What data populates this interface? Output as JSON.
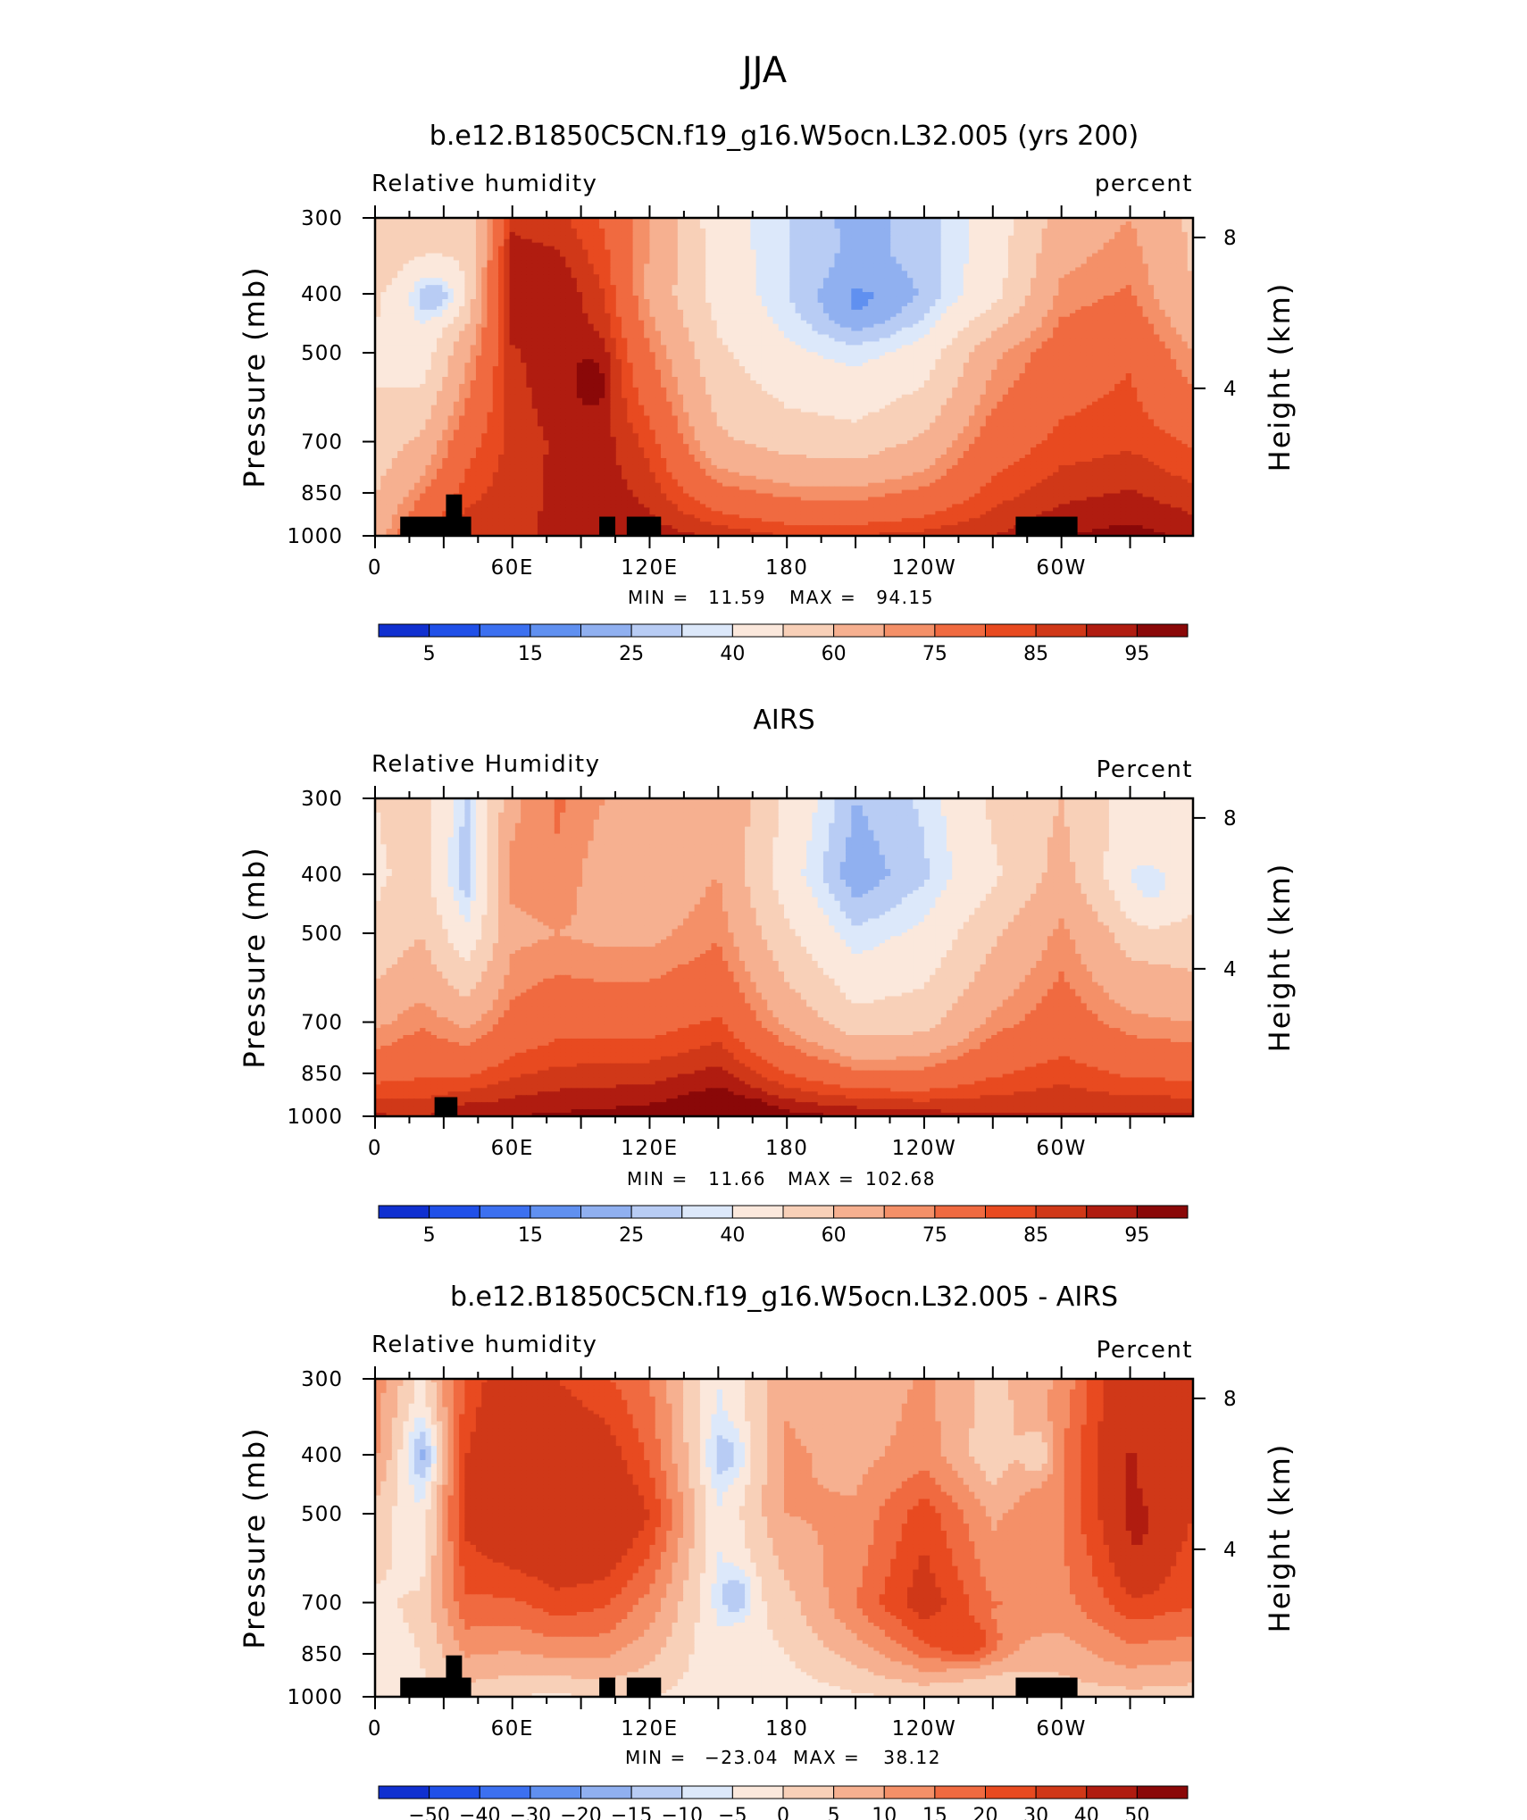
{
  "figure_title": "JJA",
  "colors": {
    "rh_fill_scale": [
      "#ffffff",
      "#0a0a78",
      "#0818a8",
      "#1030d0",
      "#2050e8",
      "#3c70f0",
      "#6090f0",
      "#90b0f0",
      "#b8ccf4",
      "#dce8fa",
      "#fbe8dc",
      "#f8d0b8",
      "#f6b090",
      "#f49068",
      "#f06a40",
      "#e84a20",
      "#d03818",
      "#b01c10",
      "#8a0808"
    ],
    "diff_fill_scale": [
      "#ffffff",
      "#0a0a78",
      "#0818a8",
      "#1030d0",
      "#2050e8",
      "#3c70f0",
      "#6090f0",
      "#90b0f0",
      "#b8ccf4",
      "#dce8fa",
      "#fbe8dc",
      "#f8d0b8",
      "#f6b090",
      "#f49068",
      "#f06a40",
      "#e84a20",
      "#d03818",
      "#b01c10",
      "#8a0808"
    ],
    "land_mask": "#000000"
  },
  "chart_data": [
    {
      "type": "heatmap",
      "title": "b.e12.B1850C5CN.f19_g16.W5ocn.L32.005 (yrs 200)",
      "left_label": "Relative humidity",
      "right_label": "percent",
      "ylabel": "Pressure (mb)",
      "ylabel_right": "Height (km)",
      "x_ticks": [
        {
          "lon": 0,
          "label": "0"
        },
        {
          "lon": 60,
          "label": "60E"
        },
        {
          "lon": 120,
          "label": "120E"
        },
        {
          "lon": 180,
          "label": "180"
        },
        {
          "lon": 240,
          "label": "120W"
        },
        {
          "lon": 300,
          "label": "60W"
        }
      ],
      "y_ticks": [
        300,
        400,
        500,
        700,
        850,
        1000
      ],
      "y_right_ticks": [
        {
          "km": 4,
          "label": "4"
        },
        {
          "km": 8,
          "label": "8"
        }
      ],
      "xlim": [
        0,
        357.5
      ],
      "ylim": [
        1000,
        300
      ],
      "stats": {
        "min_label": "MIN =",
        "min": "11.59",
        "max_label": "MAX =",
        "max": "94.15"
      },
      "colorbar": {
        "levels": [
          5,
          10,
          15,
          20,
          25,
          30,
          40,
          50,
          60,
          65,
          75,
          80,
          85,
          90,
          95
        ],
        "labels": [
          "5",
          "15",
          "25",
          "40",
          "60",
          "75",
          "85",
          "95"
        ]
      },
      "field": {
        "kind": "rh",
        "base": [
          [
            0,
            [
              50,
              42,
              38,
              44,
              55
            ]
          ],
          [
            20,
            [
              50,
              30,
              33,
              52,
              76
            ]
          ],
          [
            40,
            [
              40,
              44,
              58,
              72,
              84
            ]
          ],
          [
            60,
            [
              84,
              90,
              84,
              82,
              84
            ]
          ],
          [
            80,
            [
              82,
              90,
              89,
              86,
              86
            ]
          ],
          [
            100,
            [
              74,
              80,
              85,
              87,
              89
            ]
          ],
          [
            120,
            [
              60,
              58,
              66,
              78,
              88
            ]
          ],
          [
            150,
            [
              34,
              36,
              42,
              52,
              84
            ]
          ],
          [
            180,
            [
              25,
              26,
              32,
              46,
              80
            ]
          ],
          [
            210,
            [
              18,
              20,
              28,
              44,
              80
            ]
          ],
          [
            240,
            [
              22,
              22,
              34,
              52,
              82
            ]
          ],
          [
            270,
            [
              34,
              36,
              58,
              70,
              85
            ]
          ],
          [
            300,
            [
              54,
              62,
              70,
              77,
              90
            ]
          ],
          [
            330,
            [
              60,
              66,
              74,
              79,
              92
            ]
          ],
          [
            357.5,
            [
              48,
              50,
              60,
              74,
              89
            ]
          ]
        ],
        "blobs": [
          {
            "lon": 28,
            "p": 405,
            "dlon": 10,
            "dp": 40,
            "amp": -14
          },
          {
            "lon": 95,
            "p": 560,
            "dlon": 9,
            "dp": 70,
            "amp": 6
          },
          {
            "lon": 212,
            "p": 425,
            "dlon": 24,
            "dp": 55,
            "amp": -7
          }
        ]
      },
      "land": [
        {
          "lon0": 11,
          "lon1": 42,
          "p": 930
        },
        {
          "lon0": 31,
          "lon1": 38,
          "p": 855
        },
        {
          "lon0": 98,
          "lon1": 105,
          "p": 930
        },
        {
          "lon0": 110,
          "lon1": 125,
          "p": 930
        },
        {
          "lon0": 280,
          "lon1": 307,
          "p": 930
        }
      ]
    },
    {
      "type": "heatmap",
      "title": "AIRS",
      "left_label": "Relative Humidity",
      "right_label": "Percent",
      "ylabel": "Pressure (mb)",
      "ylabel_right": "Height (km)",
      "x_ticks": [
        {
          "lon": 0,
          "label": "0"
        },
        {
          "lon": 60,
          "label": "60E"
        },
        {
          "lon": 120,
          "label": "120E"
        },
        {
          "lon": 180,
          "label": "180"
        },
        {
          "lon": 240,
          "label": "120W"
        },
        {
          "lon": 300,
          "label": "60W"
        }
      ],
      "y_ticks": [
        300,
        400,
        500,
        700,
        850,
        1000
      ],
      "y_right_ticks": [
        {
          "km": 4,
          "label": "4"
        },
        {
          "km": 8,
          "label": "8"
        }
      ],
      "xlim": [
        0,
        357.5
      ],
      "ylim": [
        1000,
        300
      ],
      "stats": {
        "min_label": "MIN =",
        "min": "11.66",
        "max_label": "MAX =",
        "max": "102.68"
      },
      "colorbar": {
        "levels": [
          5,
          10,
          15,
          20,
          25,
          30,
          40,
          50,
          60,
          65,
          75,
          80,
          85,
          90,
          95
        ],
        "labels": [
          "5",
          "15",
          "25",
          "40",
          "60",
          "75",
          "85",
          "95"
        ]
      },
      "field": {
        "kind": "rh",
        "base": [
          [
            0,
            [
              40,
              38,
              42,
              58,
              86
            ]
          ],
          [
            20,
            [
              46,
              44,
              50,
              64,
              84
            ]
          ],
          [
            40,
            [
              24,
              20,
              32,
              58,
              90
            ]
          ],
          [
            60,
            [
              58,
              62,
              58,
              68,
              90
            ]
          ],
          [
            80,
            [
              66,
              64,
              60,
              72,
              91
            ]
          ],
          [
            100,
            [
              60,
              56,
              58,
              72,
              92
            ]
          ],
          [
            120,
            [
              54,
              54,
              58,
              72,
              93
            ]
          ],
          [
            150,
            [
              60,
              60,
              64,
              76,
              98
            ]
          ],
          [
            180,
            [
              38,
              34,
              42,
              58,
              92
            ]
          ],
          [
            210,
            [
              20,
              16,
              26,
              44,
              90
            ]
          ],
          [
            240,
            [
              26,
              24,
              32,
              46,
              88
            ]
          ],
          [
            270,
            [
              42,
              38,
              48,
              62,
              86
            ]
          ],
          [
            300,
            [
              50,
              54,
              62,
              70,
              86
            ]
          ],
          [
            330,
            [
              36,
              32,
              46,
              62,
              86
            ]
          ],
          [
            357.5,
            [
              38,
              36,
              44,
              60,
              86
            ]
          ]
        ],
        "blobs": [
          {
            "lon": 155,
            "p": 965,
            "dlon": 15,
            "dp": 25,
            "amp": 6
          },
          {
            "lon": 340,
            "p": 440,
            "dlon": 12,
            "dp": 60,
            "amp": -8
          }
        ]
      },
      "land": [
        {
          "lon0": 26,
          "lon1": 36,
          "p": 930
        }
      ]
    },
    {
      "type": "heatmap",
      "title": "b.e12.B1850C5CN.f19_g16.W5ocn.L32.005 - AIRS",
      "left_label": "Relative humidity",
      "right_label": "Percent",
      "ylabel": "Pressure (mb)",
      "ylabel_right": "Height (km)",
      "x_ticks": [
        {
          "lon": 0,
          "label": "0"
        },
        {
          "lon": 60,
          "label": "60E"
        },
        {
          "lon": 120,
          "label": "120E"
        },
        {
          "lon": 180,
          "label": "180"
        },
        {
          "lon": 240,
          "label": "120W"
        },
        {
          "lon": 300,
          "label": "60W"
        }
      ],
      "y_ticks": [
        300,
        400,
        500,
        700,
        850,
        1000
      ],
      "y_right_ticks": [
        {
          "km": 4,
          "label": "4"
        },
        {
          "km": 8,
          "label": "8"
        }
      ],
      "xlim": [
        0,
        357.5
      ],
      "ylim": [
        1000,
        300
      ],
      "stats": {
        "min_label": "MIN =",
        "min": "−23.04",
        "max_label": "MAX =",
        "max": "38.12"
      },
      "colorbar": {
        "levels": [
          -50,
          -40,
          -30,
          -20,
          -15,
          -10,
          -5,
          0,
          5,
          10,
          15,
          20,
          30,
          40,
          50
        ],
        "labels": [
          "−50",
          "−40",
          "−30",
          "−20",
          "−15",
          "−10",
          "−5",
          "0",
          "5",
          "10",
          "15",
          "20",
          "30",
          "40",
          "50"
        ]
      },
      "field": {
        "kind": "diff",
        "base": [
          [
            0,
            [
              8,
              6,
              -2,
              -6,
              -8
            ]
          ],
          [
            20,
            [
              -6,
              -12,
              -10,
              -4,
              -6
            ]
          ],
          [
            40,
            [
              16,
              20,
              22,
              14,
              -3
            ]
          ],
          [
            60,
            [
              26,
              30,
              28,
              14,
              -5
            ]
          ],
          [
            80,
            [
              20,
              26,
              30,
              18,
              -6
            ]
          ],
          [
            100,
            [
              16,
              24,
              30,
              16,
              -4
            ]
          ],
          [
            120,
            [
              10,
              14,
              20,
              8,
              -5
            ]
          ],
          [
            150,
            [
              -10,
              -12,
              -10,
              -10,
              -8
            ]
          ],
          [
            180,
            [
              4,
              6,
              5,
              -2,
              -8
            ]
          ],
          [
            210,
            [
              0,
              3,
              6,
              10,
              -6
            ]
          ],
          [
            240,
            [
              6,
              8,
              18,
              24,
              -4
            ]
          ],
          [
            270,
            [
              -2,
              -4,
              4,
              10,
              -5
            ]
          ],
          [
            300,
            [
              6,
              10,
              10,
              8,
              -3
            ]
          ],
          [
            330,
            [
              28,
              30,
              28,
              18,
              -2
            ]
          ],
          [
            357.5,
            [
              22,
              22,
              20,
              16,
              -3
            ]
          ]
        ],
        "blobs": [
          {
            "lon": 22,
            "p": 400,
            "dlon": 8,
            "dp": 45,
            "amp": -10
          },
          {
            "lon": 158,
            "p": 680,
            "dlon": 7,
            "dp": 60,
            "amp": -12
          },
          {
            "lon": 155,
            "p": 400,
            "dlon": 9,
            "dp": 40,
            "amp": -8
          },
          {
            "lon": 260,
            "p": 820,
            "dlon": 15,
            "dp": 70,
            "amp": 12
          },
          {
            "lon": 290,
            "p": 400,
            "dlon": 7,
            "dp": 40,
            "amp": -9
          },
          {
            "lon": 335,
            "p": 560,
            "dlon": 10,
            "dp": 110,
            "amp": 6
          }
        ]
      },
      "land": [
        {
          "lon0": 11,
          "lon1": 42,
          "p": 930
        },
        {
          "lon0": 31,
          "lon1": 38,
          "p": 855
        },
        {
          "lon0": 98,
          "lon1": 105,
          "p": 930
        },
        {
          "lon0": 110,
          "lon1": 125,
          "p": 930
        },
        {
          "lon0": 280,
          "lon1": 307,
          "p": 930
        }
      ]
    }
  ]
}
